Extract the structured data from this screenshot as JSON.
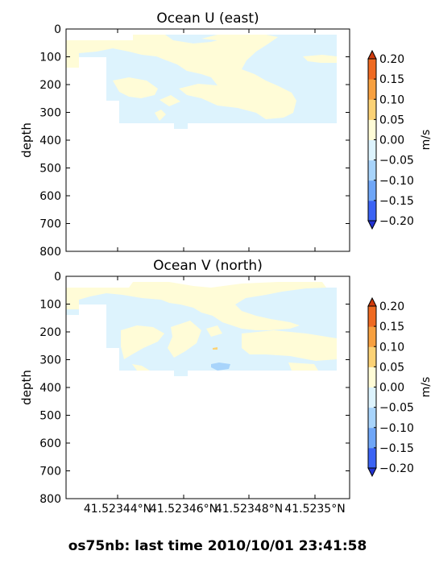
{
  "chart_data": [
    {
      "type": "contour",
      "title": "Ocean U (east)",
      "ylabel": "depth",
      "yticks": [
        0,
        100,
        200,
        300,
        400,
        500,
        600,
        700,
        800
      ],
      "ylim": [
        800,
        0
      ],
      "colorbar": {
        "label": "m/s",
        "ticks": [
          "0.20",
          "0.15",
          "0.10",
          "0.05",
          "0.00",
          "−0.05",
          "−0.10",
          "−0.15",
          "−0.20"
        ],
        "levels": [
          -0.2,
          -0.15,
          -0.1,
          -0.05,
          0,
          0.05,
          0.1,
          0.15,
          0.2
        ]
      }
    },
    {
      "type": "contour",
      "title": "Ocean V (north)",
      "ylabel": "depth",
      "yticks": [
        0,
        100,
        200,
        300,
        400,
        500,
        600,
        700,
        800
      ],
      "ylim": [
        800,
        0
      ],
      "xticks": [
        "41.52344°N",
        "41.52346°N",
        "41.52348°N",
        "41.5235°N"
      ],
      "colorbar": {
        "label": "m/s",
        "ticks": [
          "0.20",
          "0.15",
          "0.10",
          "0.05",
          "0.00",
          "−0.05",
          "−0.10",
          "−0.15",
          "−0.20"
        ],
        "levels": [
          -0.2,
          -0.15,
          -0.1,
          -0.05,
          0,
          0.05,
          0.1,
          0.15,
          0.2
        ]
      }
    }
  ],
  "colors": {
    "band_0_005": "#fffcd7",
    "band_m005_0": "#ddf3fd",
    "band_m010_m005": "#a8d4fb",
    "band_m015_m010": "#6fa6f7",
    "band_m020_m015": "#3b63f4",
    "band_005_010": "#fbd276",
    "band_010_015": "#f7a040",
    "band_015_020": "#ef6a22",
    "over": "#cf3a0c",
    "under": "#2232d2"
  },
  "footer": "os75nb: last time 2010/10/01 23:41:58"
}
